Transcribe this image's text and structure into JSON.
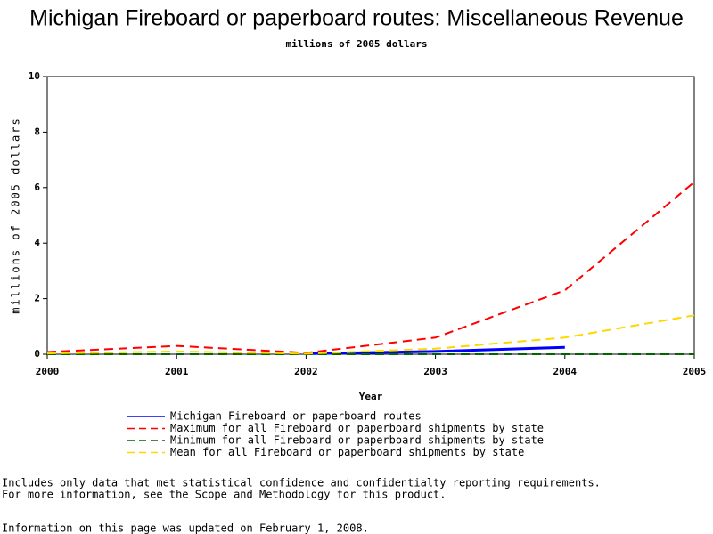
{
  "chart_data": {
    "type": "line",
    "title": "Michigan Fireboard or paperboard routes: Miscellaneous Revenue",
    "subtitle": "millions of 2005 dollars",
    "x_label": "Year",
    "y_label": "millions of 2005 dollars",
    "x": [
      2000,
      2001,
      2002,
      2003,
      2004,
      2005
    ],
    "series": [
      {
        "name": "Michigan Fireboard or paperboard routes",
        "color": "#0000ff",
        "dashed": false,
        "values": [
          null,
          null,
          0.02,
          0.1,
          0.25,
          null
        ]
      },
      {
        "name": "Maximum for all Fireboard or paperboard shipments by state",
        "color": "#ff0000",
        "dashed": true,
        "values": [
          0.08,
          0.3,
          0.05,
          0.6,
          2.3,
          6.2
        ]
      },
      {
        "name": "Minimum for all Fireboard or paperboard shipments by state",
        "color": "#006400",
        "dashed": true,
        "values": [
          0,
          0,
          0,
          0,
          0,
          0
        ]
      },
      {
        "name": "Mean for all Fireboard or paperboard shipments by state",
        "color": "#ffd700",
        "dashed": true,
        "values": [
          0.03,
          0.1,
          0.02,
          0.2,
          0.6,
          1.4
        ]
      }
    ],
    "xlim": [
      2000,
      2005
    ],
    "xticks": [
      2000,
      2001,
      2002,
      2003,
      2004,
      2005
    ],
    "ylim": [
      0,
      10
    ],
    "yticks": [
      0,
      2,
      4,
      6,
      8,
      10
    ],
    "grid": false
  },
  "notes": [
    "Includes only data that met statistical confidence and confidentialty reporting requirements.",
    "For more information, see the Scope and Methodology for this product."
  ],
  "updated": "Information on this page was updated on February 1, 2008."
}
